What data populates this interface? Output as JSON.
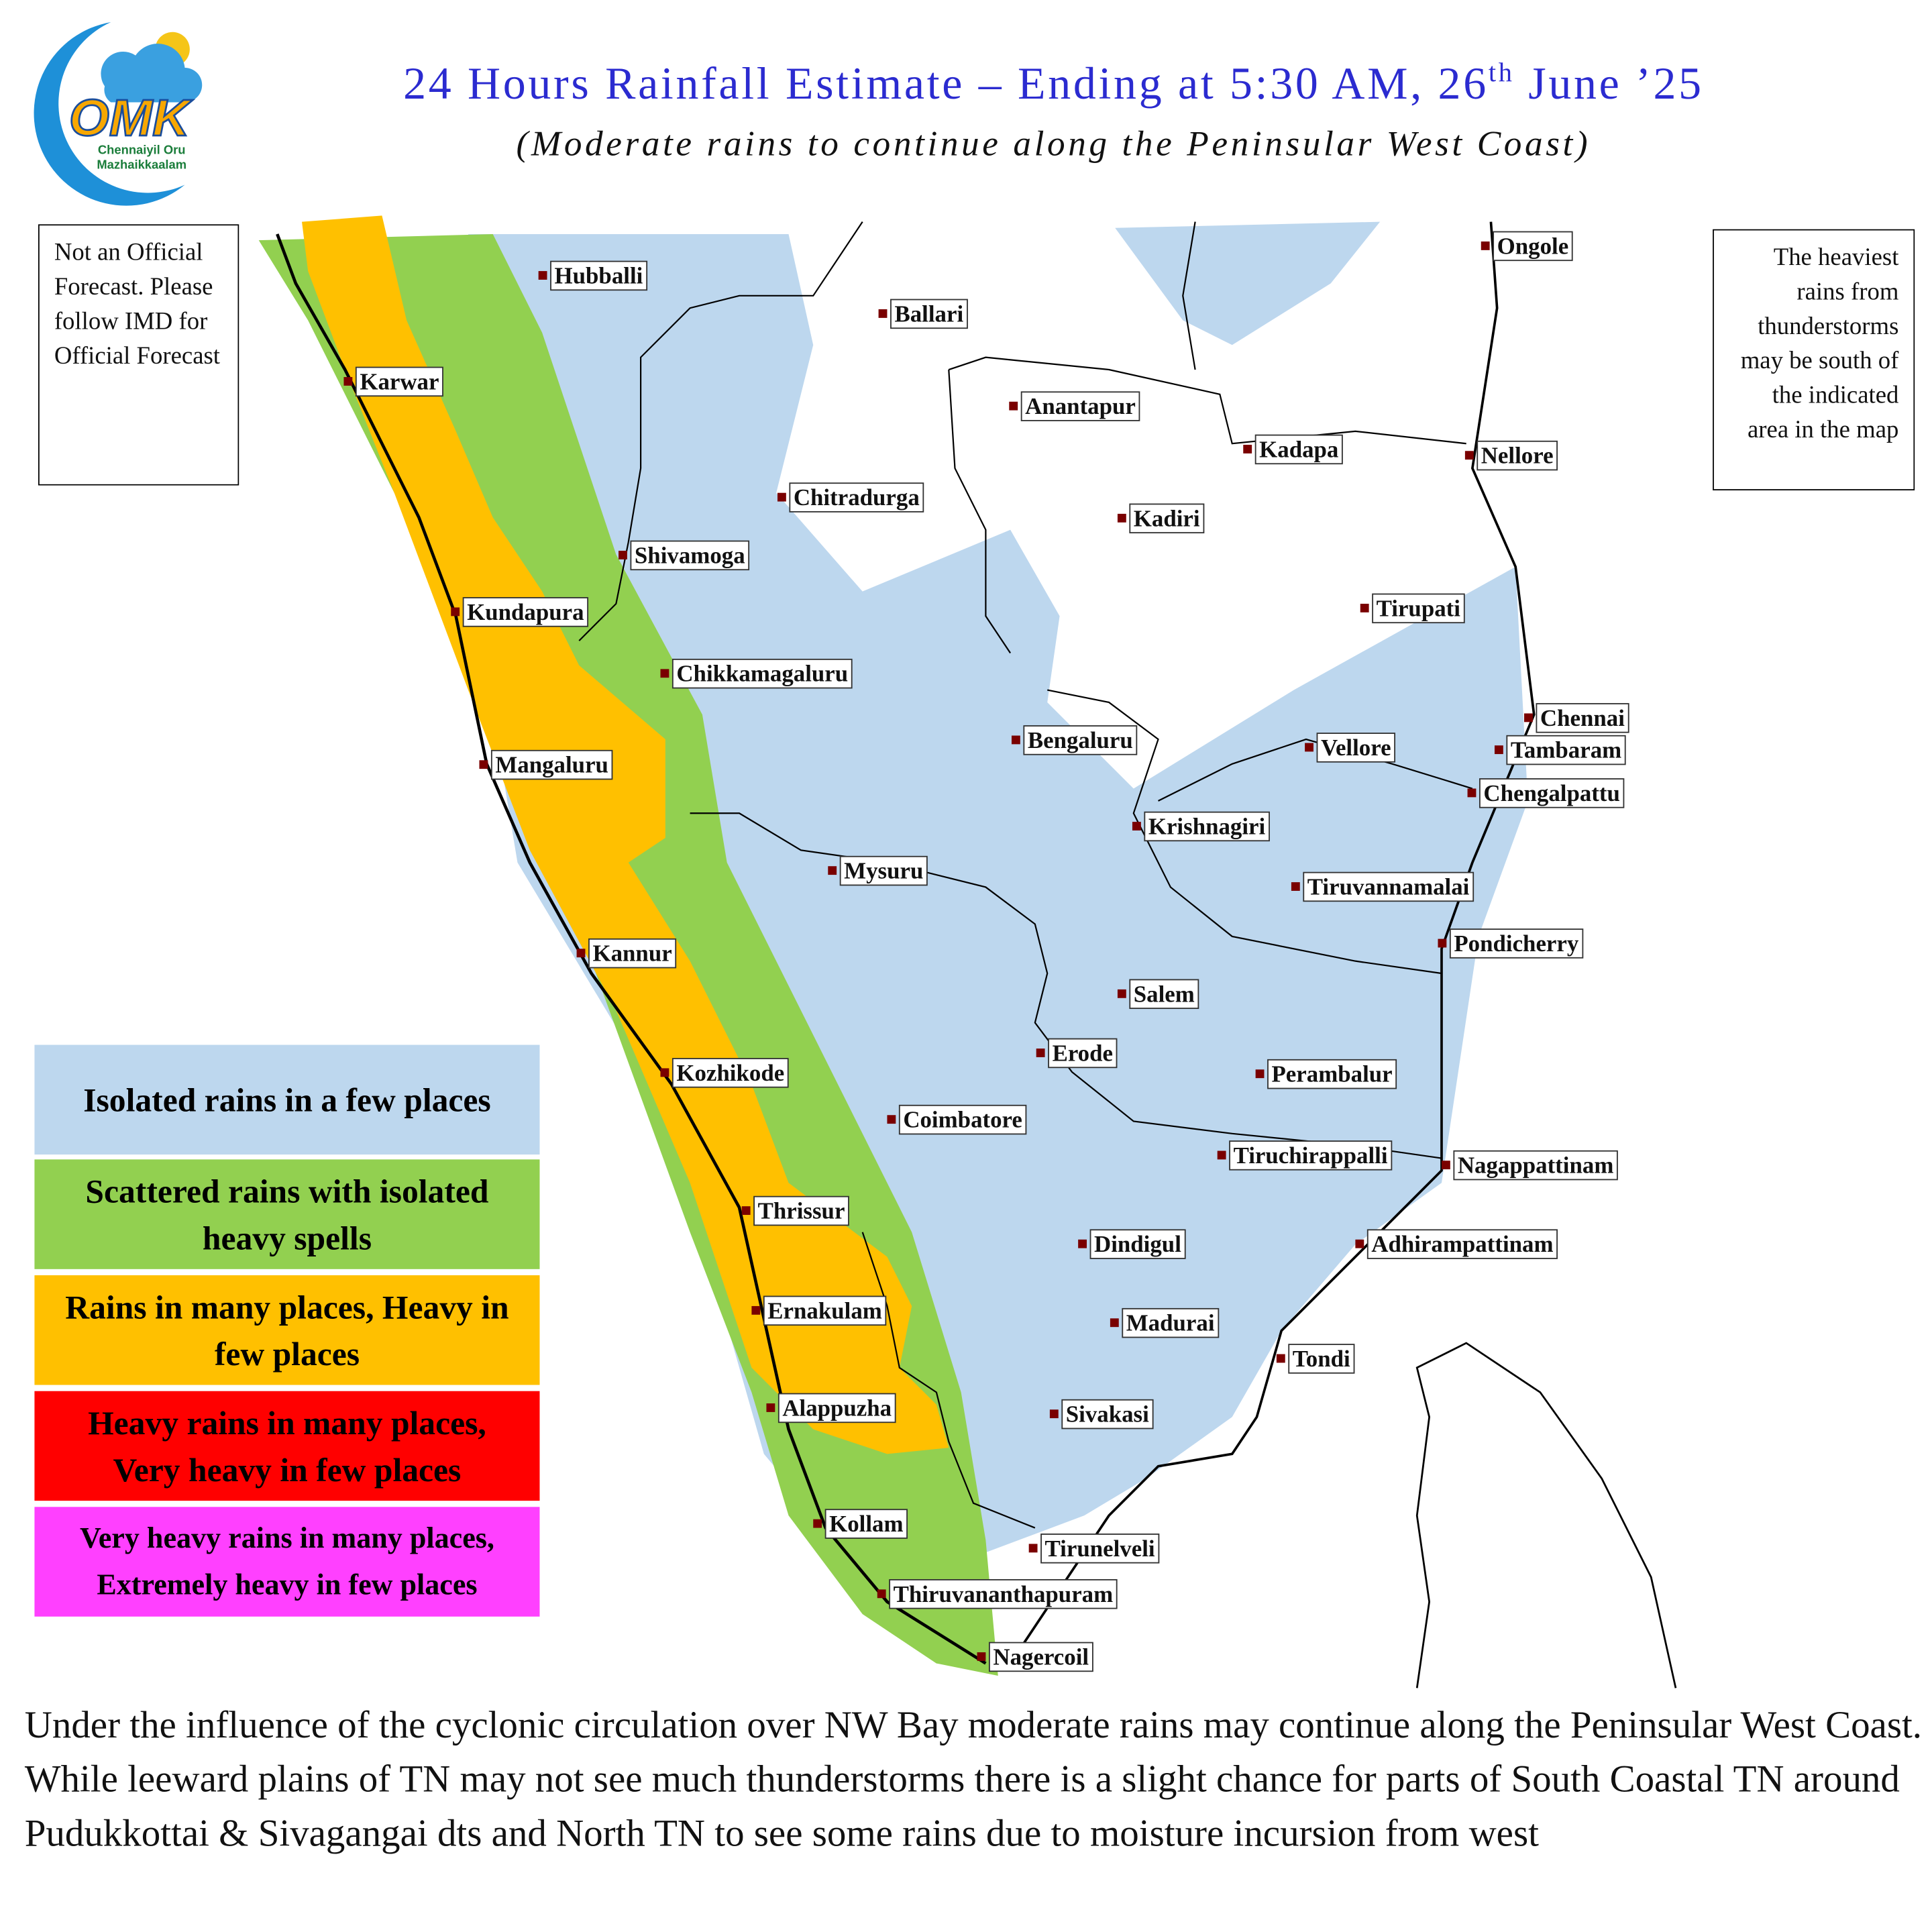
{
  "header": {
    "title_parts": [
      "24 Hours Rainfall Estimate – Ending at 5:30 AM, 26",
      "th",
      " June ’25"
    ],
    "subtitle": "(Moderate rains to continue along the Peninsular West Coast)"
  },
  "logo": {
    "mark": "OMK",
    "line1": "Chennaiyil Oru",
    "line2": "Mazhaikkaalam"
  },
  "notes": {
    "left": "Not an Official Forecast. Please follow IMD for Official Forecast",
    "right": "The heaviest rains from thunderstorms may be south of the indicated area in the map"
  },
  "legend": [
    {
      "label": "Isolated rains in a few places",
      "color": "#bdd7ee"
    },
    {
      "label": "Scattered rains with isolated heavy spells",
      "color": "#92d050"
    },
    {
      "label": "Rains in many places, Heavy in few places",
      "color": "#ffc000"
    },
    {
      "label": "Heavy rains in many places, Very heavy in few places",
      "color": "#ff0000"
    },
    {
      "label": "Very heavy rains in many places, Extremely heavy in few places",
      "color": "#ff40ff"
    }
  ],
  "cities": [
    "Hubballi",
    "Ballari",
    "Karwar",
    "Anantapur",
    "Kadapa",
    "Nellore",
    "Ongole",
    "Chitradurga",
    "Kadiri",
    "Shivamoga",
    "Kundapura",
    "Tirupati",
    "Chikkamagaluru",
    "Chennai",
    "Bengaluru",
    "Vellore",
    "Tambaram",
    "Mangaluru",
    "Chengalpattu",
    "Krishnagiri",
    "Mysuru",
    "Tiruvannamalai",
    "Pondicherry",
    "Kannur",
    "Salem",
    "Erode",
    "Kozhikode",
    "Perambalur",
    "Coimbatore",
    "Tiruchirappalli",
    "Nagappattinam",
    "Thrissur",
    "Dindigul",
    "Adhirampattinam",
    "Madurai",
    "Ernakulam",
    "Tondi",
    "Alappuzha",
    "Sivakasi",
    "Kollam",
    "Tirunelveli",
    "Thiruvananthapuram",
    "Nagercoil"
  ],
  "description": "Under the influence of the cyclonic circulation over NW Bay moderate rains may continue along the Peninsular West Coast.  While leeward plains of TN may not see much thunderstorms there is a slight chance for parts of South Coastal TN around Pudukkottai & Sivagangai dts and North TN to see some rains due to moisture incursion from west"
}
